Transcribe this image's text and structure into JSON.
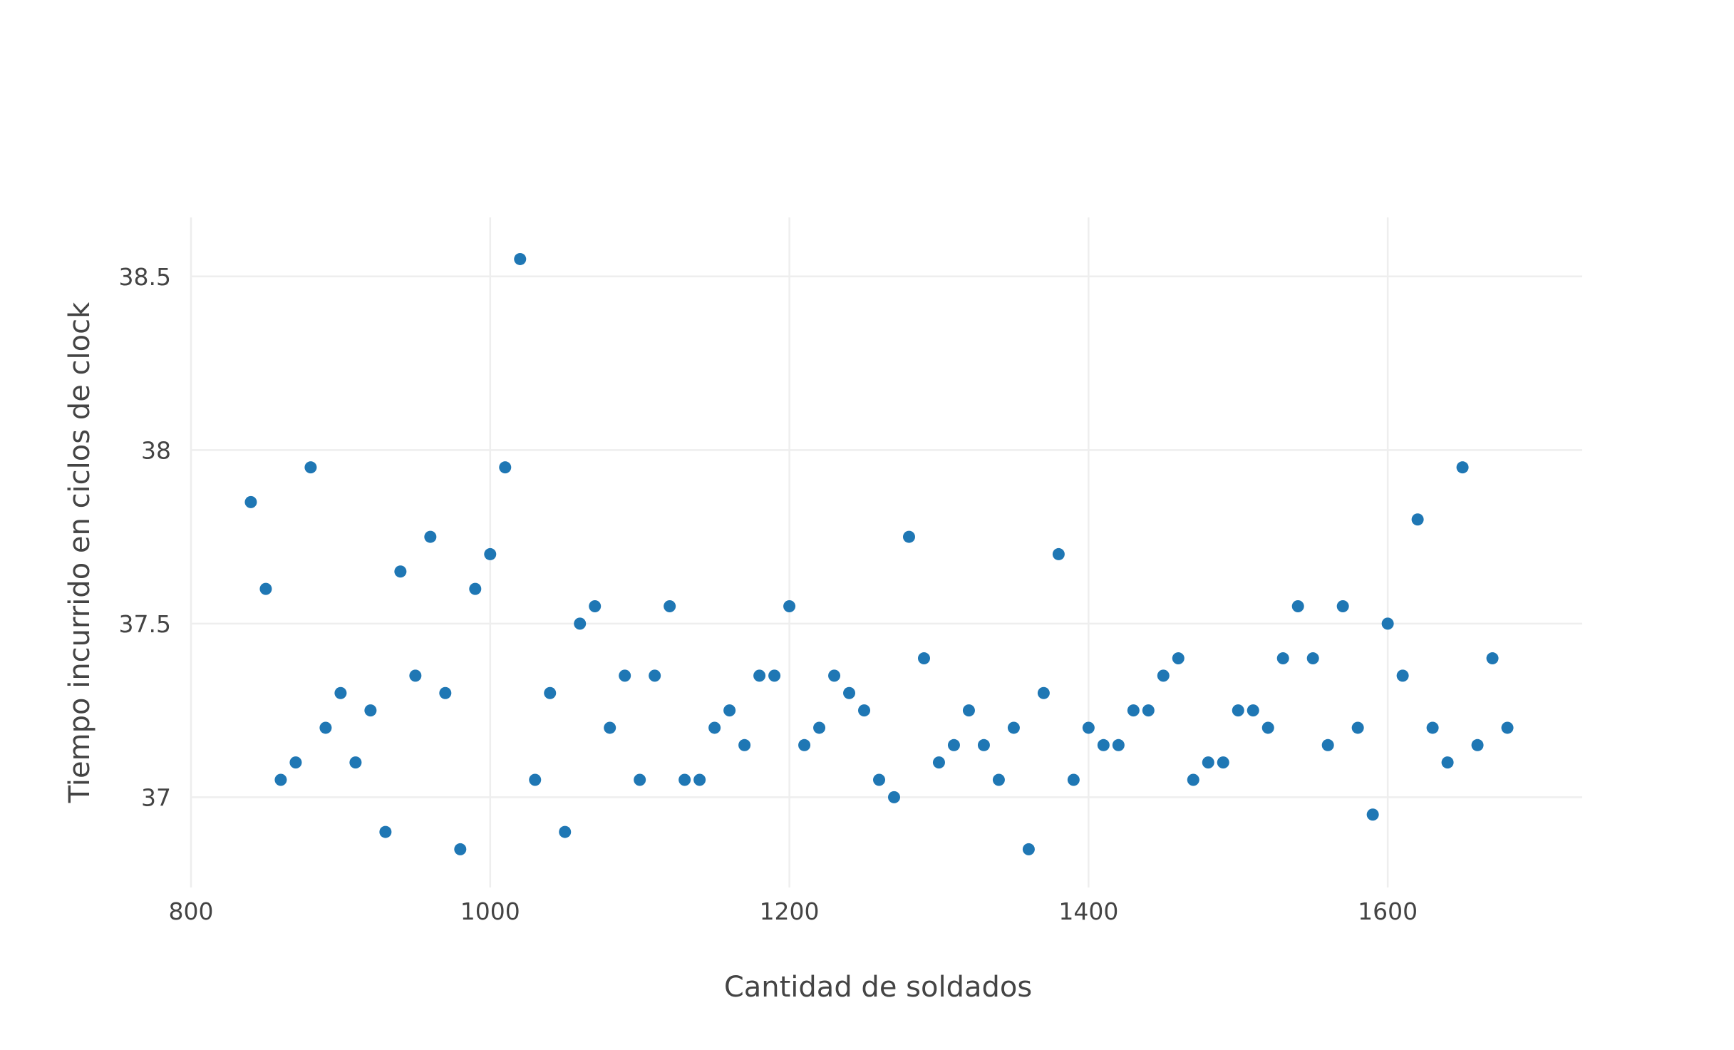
{
  "chart_data": {
    "type": "scatter",
    "title": "",
    "xlabel": "Cantidad de soldados",
    "ylabel": "Tiempo incurrido en ciclos de clock",
    "xlim": [
      800,
      1730
    ],
    "ylim": [
      36.74,
      38.67
    ],
    "xticks": [
      800,
      1000,
      1200,
      1400,
      1600
    ],
    "xtick_labels": [
      "800",
      "1000",
      "1200",
      "1400",
      "1600"
    ],
    "yticks": [
      37,
      37.5,
      38,
      38.5
    ],
    "ytick_labels": [
      "37",
      "37.5",
      "38",
      "38.5"
    ],
    "grid": true,
    "legend": false,
    "marker_color": "#1f77b4",
    "series": [
      {
        "x": [
          840,
          850,
          860,
          870,
          880,
          890,
          900,
          910,
          920,
          930,
          940,
          950,
          960,
          970,
          980,
          990,
          1000,
          1010,
          1020,
          1030,
          1040,
          1050,
          1060,
          1070,
          1080,
          1090,
          1100,
          1110,
          1120,
          1130,
          1140,
          1150,
          1160,
          1170,
          1180,
          1190,
          1200,
          1210,
          1220,
          1230,
          1240,
          1250,
          1260,
          1270,
          1280,
          1290,
          1300,
          1310,
          1320,
          1330,
          1340,
          1350,
          1360,
          1370,
          1380,
          1390,
          1400,
          1410,
          1420,
          1430,
          1440,
          1450,
          1460,
          1470,
          1480,
          1490,
          1500,
          1510,
          1520,
          1530,
          1540,
          1550,
          1560,
          1570,
          1580,
          1590,
          1600,
          1610,
          1620,
          1630,
          1640,
          1650,
          1660,
          1670,
          1680
        ],
        "y": [
          37.85,
          37.6,
          37.05,
          37.1,
          37.95,
          37.2,
          37.3,
          37.1,
          37.25,
          36.9,
          37.65,
          37.35,
          37.75,
          37.3,
          36.85,
          37.6,
          37.7,
          37.95,
          38.55,
          37.05,
          37.3,
          36.9,
          37.5,
          37.55,
          37.2,
          37.35,
          37.05,
          37.35,
          37.55,
          37.05,
          37.05,
          37.2,
          37.25,
          37.15,
          37.35,
          37.35,
          37.55,
          37.15,
          37.2,
          37.35,
          37.3,
          37.25,
          37.05,
          37.0,
          37.75,
          37.4,
          37.1,
          37.15,
          37.25,
          37.15,
          37.05,
          37.2,
          36.85,
          37.3,
          37.7,
          37.05,
          37.2,
          37.15,
          37.15,
          37.25,
          37.25,
          37.35,
          37.4,
          37.05,
          37.1,
          37.1,
          37.25,
          37.25,
          37.2,
          37.4,
          37.55,
          37.4,
          37.15,
          37.55,
          37.2,
          36.95,
          37.5,
          37.35,
          37.8,
          37.2,
          37.1,
          37.95,
          37.15,
          37.4,
          37.2
        ]
      }
    ]
  }
}
